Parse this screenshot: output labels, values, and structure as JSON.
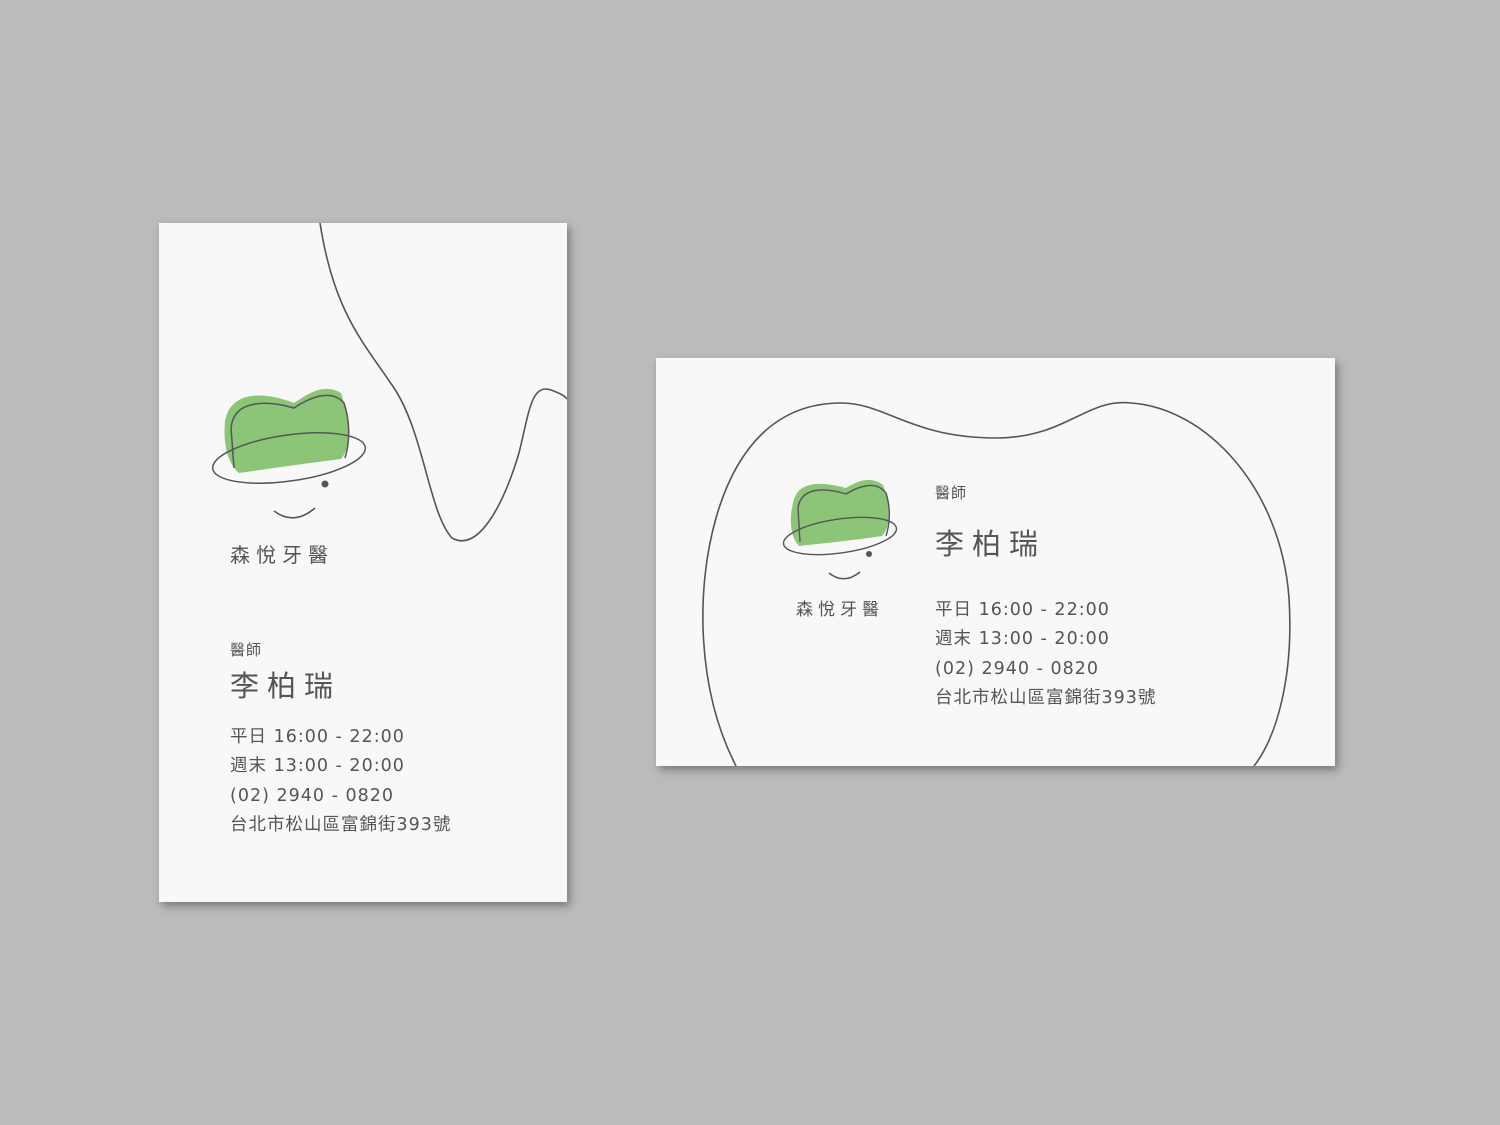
{
  "colors": {
    "background": "#bbbbbb",
    "card": "#f8f8f8",
    "accent_green": "#8cc578",
    "line": "#555555"
  },
  "logo": {
    "icon": "tooth-smile-icon",
    "name": "森悅牙醫"
  },
  "doctor": {
    "title": "醫師",
    "name": "李柏瑞"
  },
  "info": {
    "weekday_hours": "平日 16:00 - 22:00",
    "weekend_hours": "週末 13:00 - 20:00",
    "phone": "(02) 2940 - 0820",
    "address": "台北市松山區富錦街393號"
  }
}
